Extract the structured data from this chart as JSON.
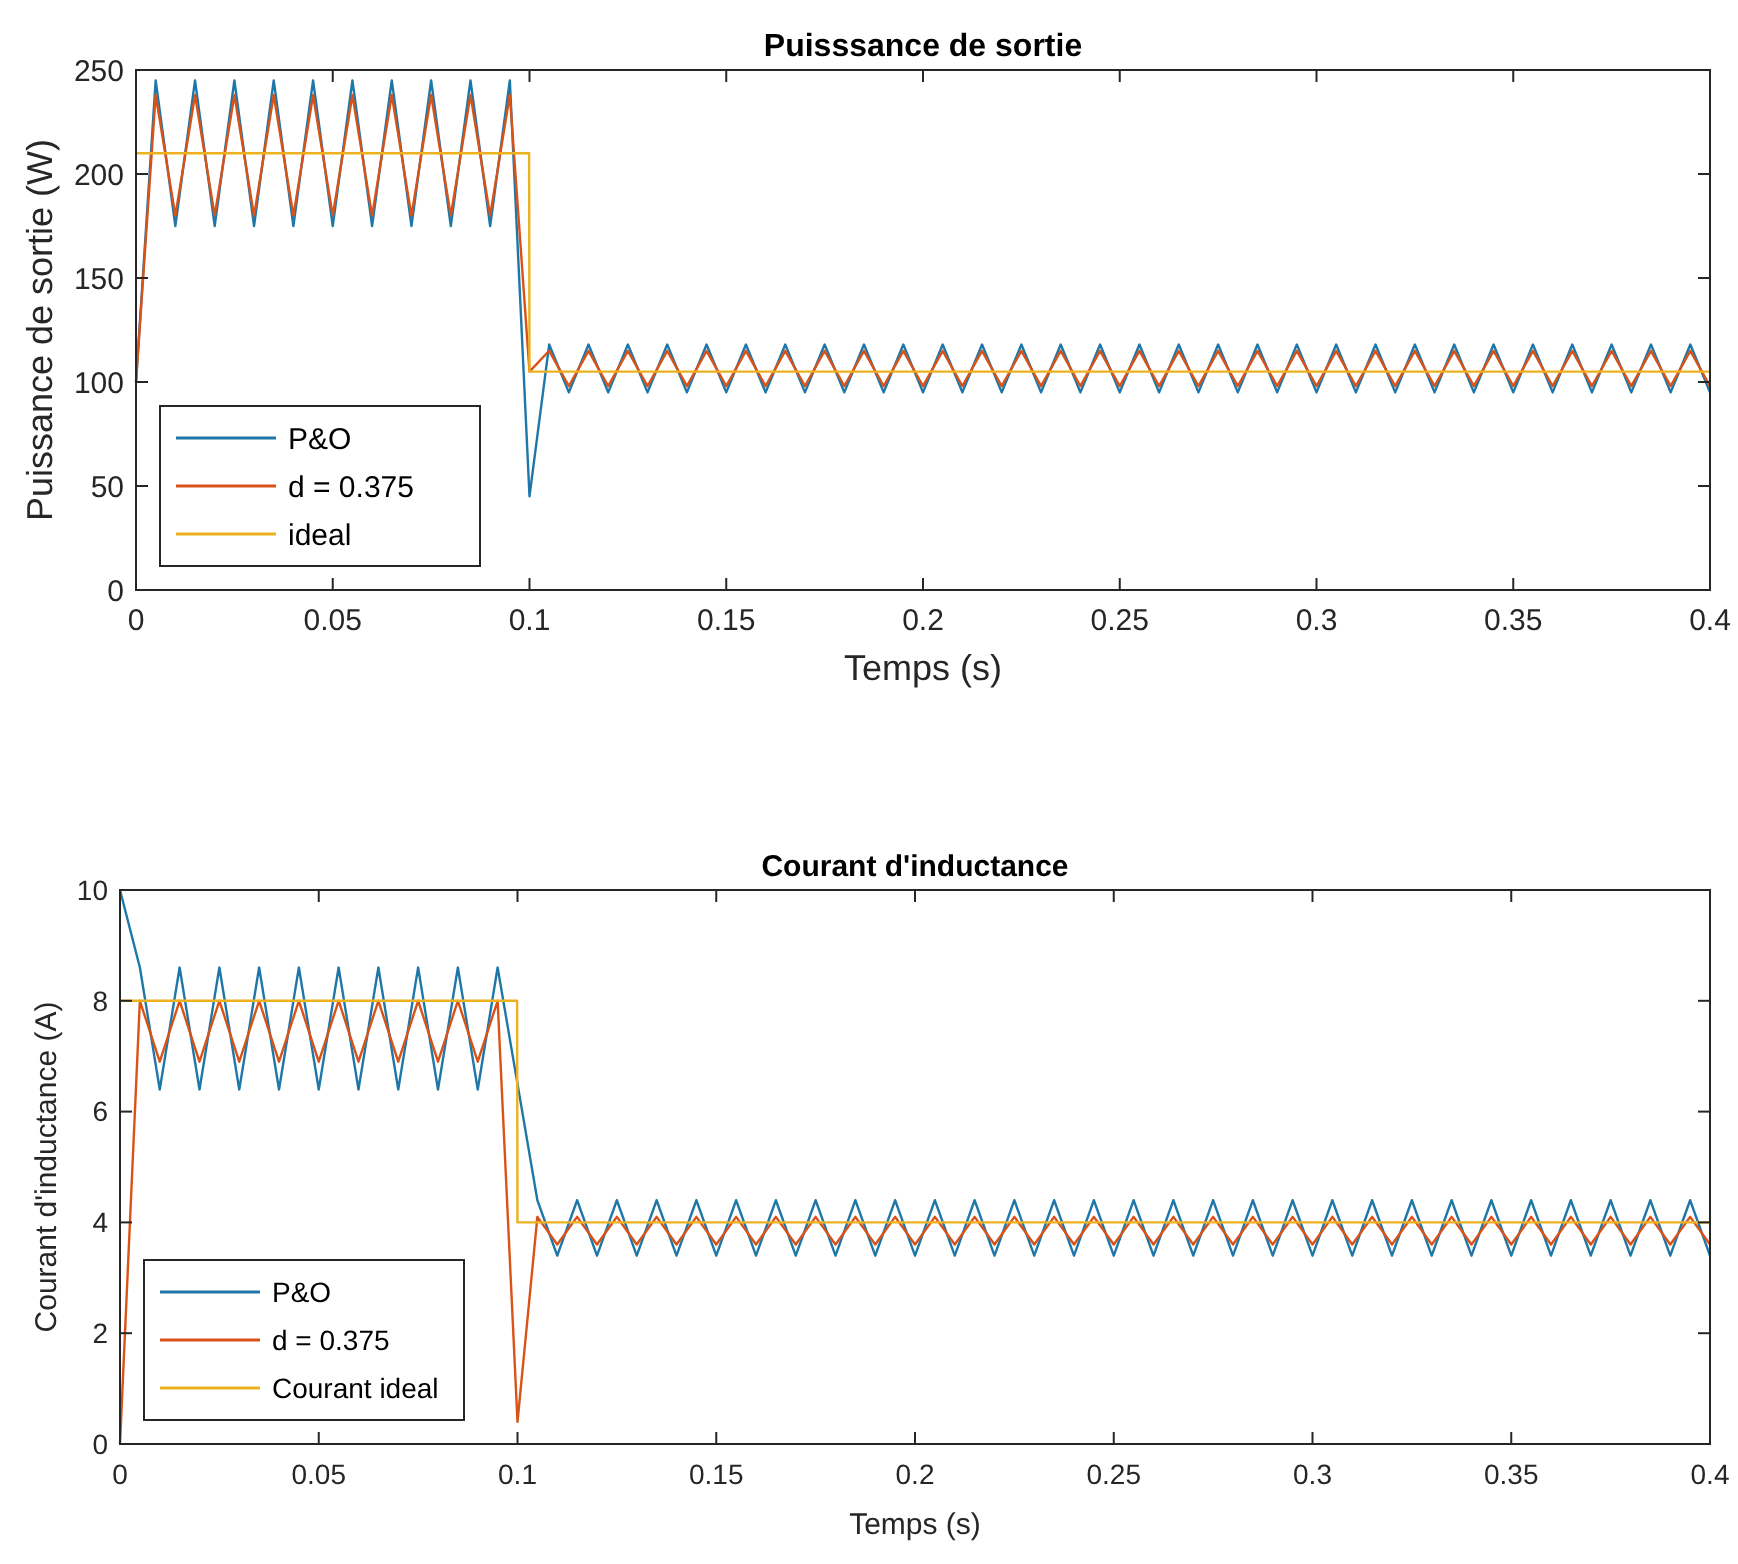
{
  "chart_data": [
    {
      "type": "line",
      "title": "Puisssance de sortie",
      "xlabel": "Temps (s)",
      "ylabel": "Puissance de sortie (W)",
      "xlim": [
        0,
        0.4
      ],
      "ylim": [
        0,
        250
      ],
      "xticks": [
        0,
        0.05,
        0.1,
        0.15,
        0.2,
        0.25,
        0.3,
        0.35,
        0.4
      ],
      "yticks": [
        0,
        50,
        100,
        150,
        200,
        250
      ],
      "legend": "bottom left",
      "grid": false,
      "x": [
        0,
        0.005,
        0.01,
        0.015,
        0.02,
        0.025,
        0.03,
        0.035,
        0.04,
        0.045,
        0.05,
        0.055,
        0.06,
        0.065,
        0.07,
        0.075,
        0.08,
        0.085,
        0.09,
        0.095,
        0.1,
        0.105,
        0.11,
        0.115,
        0.12,
        0.125,
        0.13,
        0.135,
        0.14,
        0.145,
        0.15,
        0.155,
        0.16,
        0.165,
        0.17,
        0.175,
        0.18,
        0.185,
        0.19,
        0.195,
        0.2,
        0.205,
        0.21,
        0.215,
        0.22,
        0.225,
        0.23,
        0.235,
        0.24,
        0.245,
        0.25,
        0.255,
        0.26,
        0.265,
        0.27,
        0.275,
        0.28,
        0.285,
        0.29,
        0.295,
        0.3,
        0.305,
        0.31,
        0.315,
        0.32,
        0.325,
        0.33,
        0.335,
        0.34,
        0.345,
        0.35,
        0.355,
        0.36,
        0.365,
        0.37,
        0.375,
        0.38,
        0.385,
        0.39,
        0.395,
        0.4
      ],
      "series": [
        {
          "name": "P&O",
          "color": "#1f77a8",
          "values": [
            100,
            245,
            175,
            245,
            175,
            245,
            175,
            245,
            175,
            245,
            175,
            245,
            175,
            245,
            175,
            245,
            175,
            245,
            175,
            245,
            45,
            118,
            95,
            118,
            95,
            118,
            95,
            118,
            95,
            118,
            95,
            118,
            95,
            118,
            95,
            118,
            95,
            118,
            95,
            118,
            95,
            118,
            95,
            118,
            95,
            118,
            95,
            118,
            95,
            118,
            95,
            118,
            95,
            118,
            95,
            118,
            95,
            118,
            95,
            118,
            95,
            118,
            95,
            118,
            95,
            118,
            95,
            118,
            95,
            118,
            95,
            118,
            95,
            118,
            95,
            118,
            95,
            118,
            95,
            118,
            95
          ]
        },
        {
          "name": "d = 0.375",
          "color": "#d95319",
          "values": [
            100,
            238,
            180,
            238,
            180,
            238,
            180,
            238,
            180,
            238,
            180,
            238,
            180,
            238,
            180,
            238,
            180,
            238,
            180,
            238,
            105,
            115,
            98,
            115,
            98,
            115,
            98,
            115,
            98,
            115,
            98,
            115,
            98,
            115,
            98,
            115,
            98,
            115,
            98,
            115,
            98,
            115,
            98,
            115,
            98,
            115,
            98,
            115,
            98,
            115,
            98,
            115,
            98,
            115,
            98,
            115,
            98,
            115,
            98,
            115,
            98,
            115,
            98,
            115,
            98,
            115,
            98,
            115,
            98,
            115,
            98,
            115,
            98,
            115,
            98,
            115,
            98,
            115,
            98,
            115,
            98
          ]
        },
        {
          "name": "ideal",
          "color": "#edb120",
          "x": [
            0,
            0.0999,
            0.1,
            0.4
          ],
          "values": [
            210,
            210,
            105,
            105
          ]
        }
      ]
    },
    {
      "type": "line",
      "title": "Courant d'inductance",
      "xlabel": "Temps (s)",
      "ylabel": "Courant d'inductance (A)",
      "xlim": [
        0,
        0.4
      ],
      "ylim": [
        0,
        10
      ],
      "xticks": [
        0,
        0.05,
        0.1,
        0.15,
        0.2,
        0.25,
        0.3,
        0.35,
        0.4
      ],
      "yticks": [
        0,
        2,
        4,
        6,
        8,
        10
      ],
      "legend": "bottom left",
      "grid": false,
      "x": [
        0,
        0.005,
        0.01,
        0.015,
        0.02,
        0.025,
        0.03,
        0.035,
        0.04,
        0.045,
        0.05,
        0.055,
        0.06,
        0.065,
        0.07,
        0.075,
        0.08,
        0.085,
        0.09,
        0.095,
        0.1,
        0.105,
        0.11,
        0.115,
        0.12,
        0.125,
        0.13,
        0.135,
        0.14,
        0.145,
        0.15,
        0.155,
        0.16,
        0.165,
        0.17,
        0.175,
        0.18,
        0.185,
        0.19,
        0.195,
        0.2,
        0.205,
        0.21,
        0.215,
        0.22,
        0.225,
        0.23,
        0.235,
        0.24,
        0.245,
        0.25,
        0.255,
        0.26,
        0.265,
        0.27,
        0.275,
        0.28,
        0.285,
        0.29,
        0.295,
        0.3,
        0.305,
        0.31,
        0.315,
        0.32,
        0.325,
        0.33,
        0.335,
        0.34,
        0.345,
        0.35,
        0.355,
        0.36,
        0.365,
        0.37,
        0.375,
        0.38,
        0.385,
        0.39,
        0.395,
        0.4
      ],
      "series": [
        {
          "name": "P&O",
          "color": "#1f77a8",
          "values": [
            10,
            8.6,
            6.4,
            8.6,
            6.4,
            8.6,
            6.4,
            8.6,
            6.4,
            8.6,
            6.4,
            8.6,
            6.4,
            8.6,
            6.4,
            8.6,
            6.4,
            8.6,
            6.4,
            8.6,
            6.5,
            4.4,
            3.4,
            4.4,
            3.4,
            4.4,
            3.4,
            4.4,
            3.4,
            4.4,
            3.4,
            4.4,
            3.4,
            4.4,
            3.4,
            4.4,
            3.4,
            4.4,
            3.4,
            4.4,
            3.4,
            4.4,
            3.4,
            4.4,
            3.4,
            4.4,
            3.4,
            4.4,
            3.4,
            4.4,
            3.4,
            4.4,
            3.4,
            4.4,
            3.4,
            4.4,
            3.4,
            4.4,
            3.4,
            4.4,
            3.4,
            4.4,
            3.4,
            4.4,
            3.4,
            4.4,
            3.4,
            4.4,
            3.4,
            4.4,
            3.4,
            4.4,
            3.4,
            4.4,
            3.4,
            4.4,
            3.4,
            4.4,
            3.4,
            4.4,
            3.4
          ]
        },
        {
          "name": "d = 0.375",
          "color": "#d95319",
          "values": [
            0,
            8,
            6.9,
            8,
            6.9,
            8,
            6.9,
            8,
            6.9,
            8,
            6.9,
            8,
            6.9,
            8,
            6.9,
            8,
            6.9,
            8,
            6.9,
            8,
            0.4,
            4.1,
            3.6,
            4.1,
            3.6,
            4.1,
            3.6,
            4.1,
            3.6,
            4.1,
            3.6,
            4.1,
            3.6,
            4.1,
            3.6,
            4.1,
            3.6,
            4.1,
            3.6,
            4.1,
            3.6,
            4.1,
            3.6,
            4.1,
            3.6,
            4.1,
            3.6,
            4.1,
            3.6,
            4.1,
            3.6,
            4.1,
            3.6,
            4.1,
            3.6,
            4.1,
            3.6,
            4.1,
            3.6,
            4.1,
            3.6,
            4.1,
            3.6,
            4.1,
            3.6,
            4.1,
            3.6,
            4.1,
            3.6,
            4.1,
            3.6,
            4.1,
            3.6,
            4.1,
            3.6,
            4.1,
            3.6,
            4.1,
            3.6,
            4.1,
            3.6
          ]
        },
        {
          "name": "Courant ideal",
          "color": "#edb120",
          "x": [
            0,
            0.0999,
            0.1,
            0.4
          ],
          "values": [
            8,
            8,
            4,
            4
          ]
        }
      ]
    }
  ]
}
